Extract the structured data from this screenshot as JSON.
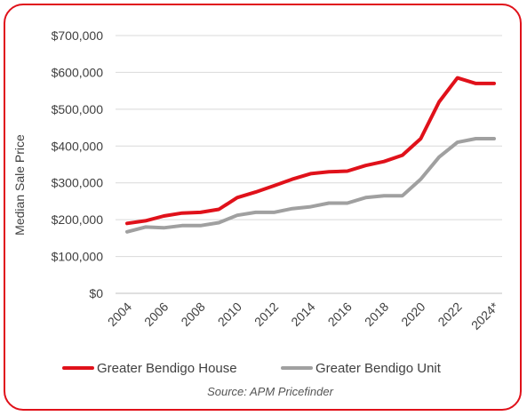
{
  "chart_data": {
    "type": "line",
    "categories": [
      "2004",
      "2005",
      "2006",
      "2007",
      "2008",
      "2009",
      "2010",
      "2011",
      "2012",
      "2013",
      "2014",
      "2015",
      "2016",
      "2017",
      "2018",
      "2019",
      "2020",
      "2021",
      "2022",
      "2023",
      "2024*"
    ],
    "tick_labels": [
      "2004",
      "2006",
      "2008",
      "2010",
      "2012",
      "2014",
      "2016",
      "2018",
      "2020",
      "2022",
      "2024*"
    ],
    "series": [
      {
        "name": "Greater Bendigo House",
        "color": "#e0111a",
        "values": [
          190000,
          197000,
          210000,
          218000,
          220000,
          228000,
          260000,
          275000,
          292000,
          310000,
          325000,
          330000,
          332000,
          347000,
          358000,
          375000,
          420000,
          520000,
          585000,
          570000,
          570000
        ]
      },
      {
        "name": "Greater Bendigo Unit",
        "color": "#a0a0a0",
        "values": [
          167000,
          180000,
          178000,
          184000,
          184000,
          192000,
          212000,
          220000,
          220000,
          230000,
          235000,
          245000,
          245000,
          260000,
          265000,
          265000,
          310000,
          370000,
          410000,
          420000,
          420000
        ]
      }
    ],
    "ylabel": "Median Sale Price",
    "xlabel": "",
    "ylim": [
      0,
      700000
    ],
    "yticks": [
      0,
      100000,
      200000,
      300000,
      400000,
      500000,
      600000,
      700000
    ],
    "ytick_labels": [
      "$0",
      "$100,000",
      "$200,000",
      "$300,000",
      "$400,000",
      "$500,000",
      "$600,000",
      "$700,000"
    ],
    "grid": true,
    "legend_position": "bottom",
    "source_note": "Source: APM Pricefinder"
  }
}
